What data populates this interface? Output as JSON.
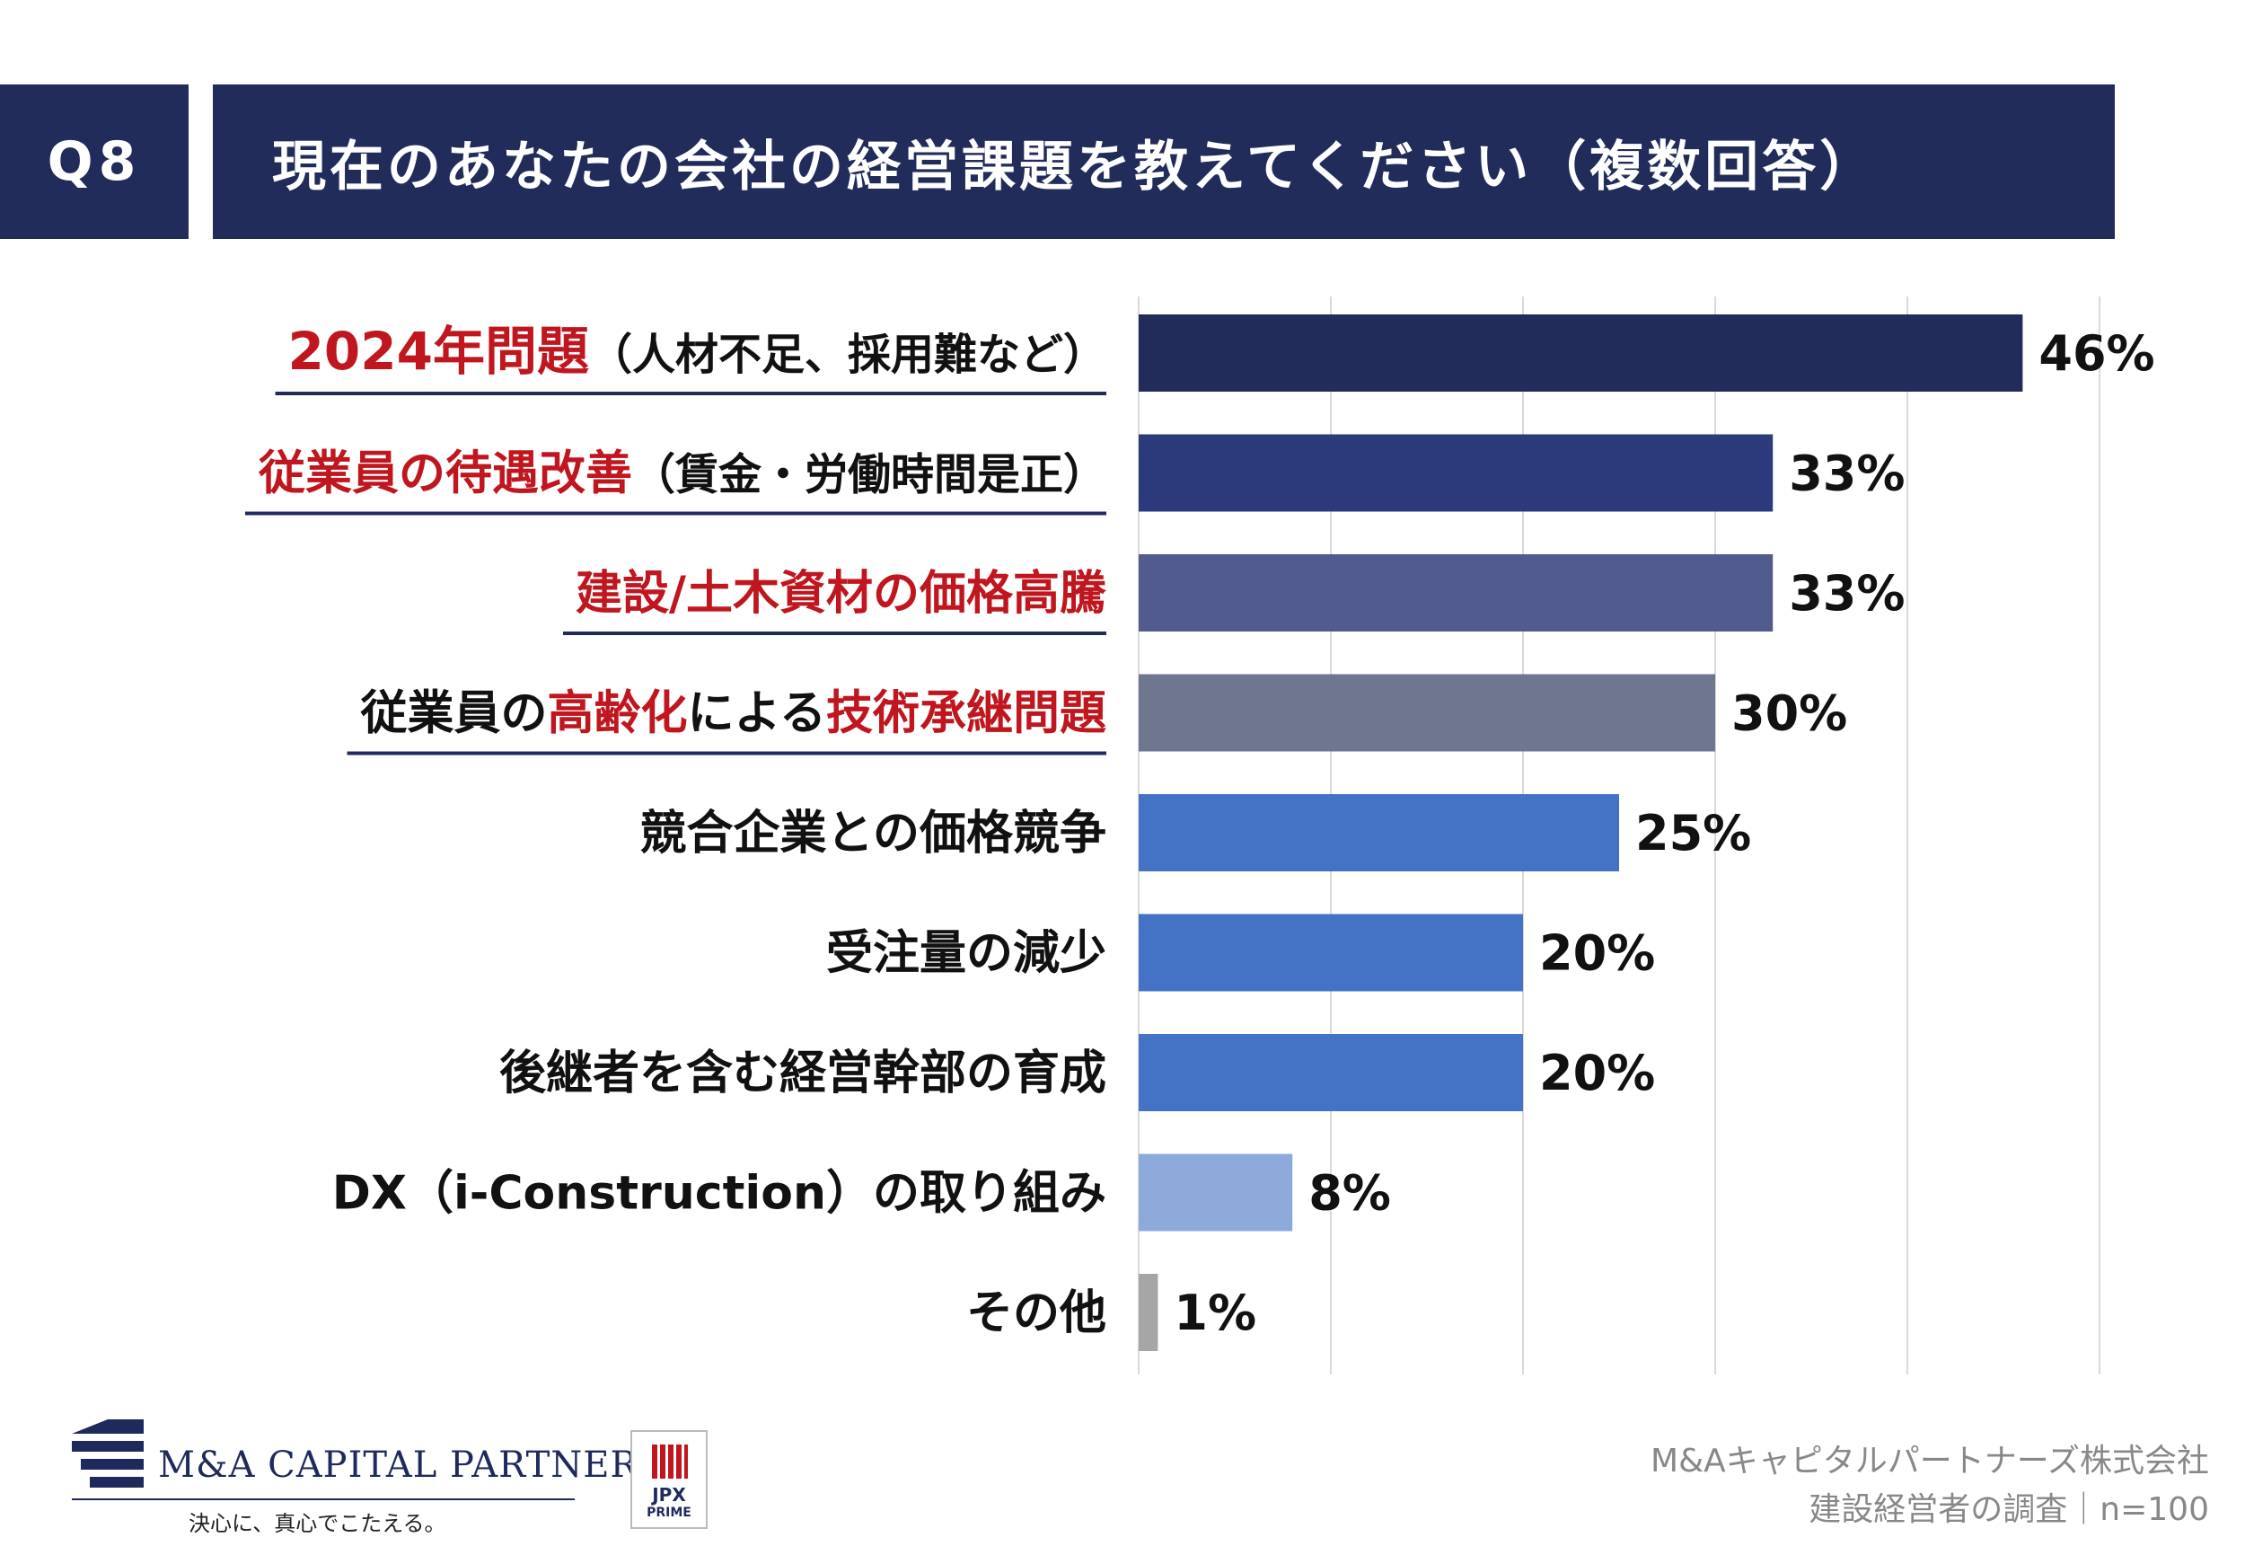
{
  "header": {
    "question_id": "Q8",
    "question_text": "現在のあなたの会社の経営課題を教えてください（複数回答）"
  },
  "chart_data": {
    "type": "bar",
    "orientation": "horizontal",
    "categories": [
      "2024年問題（人材不足、採用難など）",
      "従業員の待遇改善（賃金・労働時間是正）",
      "建設/土木資材の価格高騰",
      "従業員の高齢化による技術承継問題",
      "競合企業との価格競争",
      "受注量の減少",
      "後継者を含む経営幹部の育成",
      "DX（i-Construction）の取り組み",
      "その他"
    ],
    "category_segments": [
      [
        {
          "text": "2024年問題",
          "highlight": true,
          "size": "big"
        },
        {
          "text": "（人材不足、採用難など）",
          "highlight": false,
          "size": "small"
        }
      ],
      [
        {
          "text": "従業員の待遇改善",
          "highlight": true
        },
        {
          "text": "（賃金・労働時間是正）",
          "highlight": false,
          "size": "small"
        }
      ],
      [
        {
          "text": "建設/土木資材の価格高騰",
          "highlight": true
        }
      ],
      [
        {
          "text": "従業員の",
          "highlight": false
        },
        {
          "text": "高齢化",
          "highlight": true
        },
        {
          "text": "による",
          "highlight": false
        },
        {
          "text": "技術承継問題",
          "highlight": true
        }
      ],
      [
        {
          "text": "競合企業との価格競争",
          "highlight": false
        }
      ],
      [
        {
          "text": "受注量の減少",
          "highlight": false
        }
      ],
      [
        {
          "text": "後継者を含む経営幹部の育成",
          "highlight": false
        }
      ],
      [
        {
          "text": "DX（i-Construction）の取り組み",
          "highlight": false
        }
      ],
      [
        {
          "text": "その他",
          "highlight": false
        }
      ]
    ],
    "values": [
      46,
      33,
      33,
      30,
      25,
      20,
      20,
      8,
      1
    ],
    "value_labels": [
      "46%",
      "33%",
      "33%",
      "30%",
      "25%",
      "20%",
      "20%",
      "8%",
      "1%"
    ],
    "bar_colors": [
      "#222c5a",
      "#2b3a7b",
      "#525b8e",
      "#6f7690",
      "#4472c4",
      "#4472c4",
      "#4472c4",
      "#8eaadb",
      "#a6a6a6"
    ],
    "underlined": [
      true,
      true,
      true,
      true,
      false,
      false,
      false,
      false,
      false
    ],
    "xlim": [
      0,
      50
    ],
    "grid": true,
    "highlight_color": "#c0161e",
    "underline_color": "#222c5a"
  },
  "branding": {
    "company_logo_text": "M&A CAPITAL PARTNERS",
    "company_tagline": "決心に、真心でこたえる。",
    "jpx_mark_text": "JPX",
    "jpx_mark_sub": "PRIME"
  },
  "footer": {
    "line1": "M&Aキャピタルパートナーズ株式会社",
    "line2": "建設経営者の調査｜n=100"
  }
}
